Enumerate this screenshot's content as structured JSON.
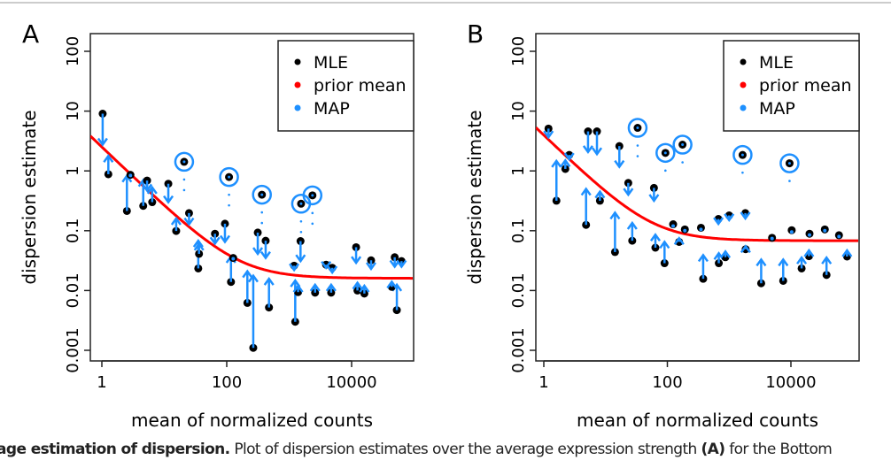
{
  "chart_data": [
    {
      "panel": "A",
      "type": "scatter",
      "xlabel": "mean of normalized counts",
      "ylabel": "dispersion estimate",
      "xscale": "log",
      "yscale": "log",
      "xlim": [
        0.67,
        100000
      ],
      "ylim": [
        0.0007,
        180
      ],
      "xticks": [
        "1",
        "100",
        "10000"
      ],
      "yticks": [
        "100",
        "10",
        "1",
        "0.1",
        "0.01",
        "0.001"
      ],
      "legend": {
        "position": "top-right",
        "entries": [
          {
            "label": "MLE",
            "color": "#000000"
          },
          {
            "label": "prior mean",
            "color": "#ff0000"
          },
          {
            "label": "MAP",
            "color": "#1e90ff"
          }
        ]
      },
      "prior_mean": {
        "a0": 0.016,
        "a1": 2.5
      },
      "points": [
        {
          "x": 1.03,
          "mle": 9.06,
          "map": 2.75
        },
        {
          "x": 1.27,
          "mle": 0.88,
          "map": 1.78
        },
        {
          "x": 2.52,
          "mle": 0.214,
          "map": 0.83
        },
        {
          "x": 2.87,
          "mle": 0.86,
          "map": 0.84
        },
        {
          "x": 4.6,
          "mle": 0.26,
          "map": 0.7
        },
        {
          "x": 5.3,
          "mle": 0.69,
          "map": 0.47
        },
        {
          "x": 6.4,
          "mle": 0.3,
          "map": 0.53
        },
        {
          "x": 11.6,
          "mle": 0.61,
          "map": 0.3
        },
        {
          "x": 20.8,
          "mle": 1.42,
          "map": 0.45,
          "outlier": true
        },
        {
          "x": 15.5,
          "mle": 0.099,
          "map": 0.16
        },
        {
          "x": 24.9,
          "mle": 0.197,
          "map": 0.128
        },
        {
          "x": 35,
          "mle": 0.0234,
          "map": 0.068
        },
        {
          "x": 36,
          "mle": 0.041,
          "map": 0.06
        },
        {
          "x": 64.8,
          "mle": 0.089,
          "map": 0.061
        },
        {
          "x": 93.6,
          "mle": 0.131,
          "map": 0.065
        },
        {
          "x": 108.8,
          "mle": 0.79,
          "map": 0.26,
          "outlier": true
        },
        {
          "x": 117,
          "mle": 0.0139,
          "map": 0.037
        },
        {
          "x": 127,
          "mle": 0.035,
          "map": 0.034
        },
        {
          "x": 214,
          "mle": 0.0062,
          "map": 0.021
        },
        {
          "x": 266,
          "mle": 0.0011,
          "map": 0.0177
        },
        {
          "x": 314,
          "mle": 0.093,
          "map": 0.041
        },
        {
          "x": 420,
          "mle": 0.068,
          "map": 0.035
        },
        {
          "x": 366,
          "mle": 0.4,
          "map": 0.13,
          "outlier": true
        },
        {
          "x": 475,
          "mle": 0.0052,
          "map": 0.0157
        },
        {
          "x": 1250,
          "mle": 0.003,
          "map": 0.0147
        },
        {
          "x": 1390,
          "mle": 0.0094,
          "map": 0.012
        },
        {
          "x": 1200,
          "mle": 0.026,
          "map": 0.022
        },
        {
          "x": 1520,
          "mle": 0.067,
          "map": 0.031
        },
        {
          "x": 1550,
          "mle": 0.283,
          "map": 0.092,
          "outlier": true
        },
        {
          "x": 2360,
          "mle": 0.39,
          "map": 0.13,
          "outlier": true
        },
        {
          "x": 2600,
          "mle": 0.0092,
          "map": 0.0125
        },
        {
          "x": 3900,
          "mle": 0.027,
          "map": 0.024
        },
        {
          "x": 4700,
          "mle": 0.0092,
          "map": 0.0125
        },
        {
          "x": 4900,
          "mle": 0.024,
          "map": 0.02
        },
        {
          "x": 11800,
          "mle": 0.053,
          "map": 0.029
        },
        {
          "x": 12400,
          "mle": 0.01,
          "map": 0.0135
        },
        {
          "x": 16000,
          "mle": 0.0089,
          "map": 0.012
        },
        {
          "x": 20500,
          "mle": 0.032,
          "map": 0.023
        },
        {
          "x": 49000,
          "mle": 0.036,
          "map": 0.025
        },
        {
          "x": 53000,
          "mle": 0.0047,
          "map": 0.0125
        },
        {
          "x": 44000,
          "mle": 0.0115,
          "map": 0.014
        },
        {
          "x": 63000,
          "mle": 0.031,
          "map": 0.025
        }
      ]
    },
    {
      "panel": "B",
      "type": "scatter",
      "xlabel": "mean of normalized counts",
      "ylabel": "dispersion estimate",
      "xscale": "log",
      "yscale": "log",
      "xlim": [
        0.77,
        100000
      ],
      "ylim": [
        0.0007,
        180
      ],
      "xticks": [
        "1",
        "100",
        "10000"
      ],
      "yticks": [
        "100",
        "10",
        "1",
        "0.1",
        "0.01",
        "0.001"
      ],
      "legend": {
        "position": "top-right",
        "entries": [
          {
            "label": "MLE",
            "color": "#000000"
          },
          {
            "label": "prior mean",
            "color": "#ff0000"
          },
          {
            "label": "MAP",
            "color": "#1e90ff"
          }
        ]
      },
      "prior_mean": {
        "a0": 0.068,
        "a1": 3.9
      },
      "points": [
        {
          "x": 1.19,
          "mle": 5.1,
          "map": 3.65
        },
        {
          "x": 1.6,
          "mle": 0.317,
          "map": 1.47
        },
        {
          "x": 2.23,
          "mle": 1.08,
          "map": 1.5
        },
        {
          "x": 2.58,
          "mle": 1.85,
          "map": 1.56
        },
        {
          "x": 4.83,
          "mle": 0.125,
          "map": 0.5
        },
        {
          "x": 5.2,
          "mle": 4.58,
          "map": 2.07
        },
        {
          "x": 7.25,
          "mle": 4.58,
          "map": 1.91
        },
        {
          "x": 8.1,
          "mle": 0.317,
          "map": 0.45
        },
        {
          "x": 14.2,
          "mle": 0.044,
          "map": 0.2
        },
        {
          "x": 16.7,
          "mle": 2.6,
          "map": 1.17
        },
        {
          "x": 33,
          "mle": 5.25,
          "map": 1.74,
          "outlier": true
        },
        {
          "x": 23.3,
          "mle": 0.63,
          "map": 0.4
        },
        {
          "x": 27,
          "mle": 0.068,
          "map": 0.135
        },
        {
          "x": 60.7,
          "mle": 0.52,
          "map": 0.317
        },
        {
          "x": 64,
          "mle": 0.052,
          "map": 0.086
        },
        {
          "x": 93,
          "mle": 2.0,
          "map": 0.93,
          "outlier": true
        },
        {
          "x": 176,
          "mle": 2.75,
          "map": 1.31,
          "outlier": true
        },
        {
          "x": 90,
          "mle": 0.0286,
          "map": 0.065
        },
        {
          "x": 124,
          "mle": 0.128,
          "map": 0.12
        },
        {
          "x": 155,
          "mle": 0.065,
          "map": 0.075
        },
        {
          "x": 192,
          "mle": 0.105,
          "map": 0.1
        },
        {
          "x": 350,
          "mle": 0.112,
          "map": 0.105
        },
        {
          "x": 380,
          "mle": 0.0157,
          "map": 0.039
        },
        {
          "x": 680,
          "mle": 0.0286,
          "map": 0.042
        },
        {
          "x": 670,
          "mle": 0.157,
          "map": 0.13
        },
        {
          "x": 870,
          "mle": 0.036,
          "map": 0.045
        },
        {
          "x": 1000,
          "mle": 0.18,
          "map": 0.15
        },
        {
          "x": 1830,
          "mle": 0.197,
          "map": 0.16
        },
        {
          "x": 1850,
          "mle": 0.049,
          "map": 0.055
        },
        {
          "x": 1650,
          "mle": 1.85,
          "map": 0.88,
          "outlier": true
        },
        {
          "x": 3300,
          "mle": 0.0132,
          "map": 0.033
        },
        {
          "x": 4950,
          "mle": 0.076,
          "map": 0.074
        },
        {
          "x": 7500,
          "mle": 0.0145,
          "map": 0.033
        },
        {
          "x": 9500,
          "mle": 1.34,
          "map": 0.64,
          "outlier": true
        },
        {
          "x": 10300,
          "mle": 0.102,
          "map": 0.095
        },
        {
          "x": 14900,
          "mle": 0.0234,
          "map": 0.0355
        },
        {
          "x": 19600,
          "mle": 0.0375,
          "map": 0.047
        },
        {
          "x": 20000,
          "mle": 0.089,
          "map": 0.085
        },
        {
          "x": 37700,
          "mle": 0.0182,
          "map": 0.0355
        },
        {
          "x": 35400,
          "mle": 0.105,
          "map": 0.1
        },
        {
          "x": 60000,
          "mle": 0.084,
          "map": 0.08
        },
        {
          "x": 81000,
          "mle": 0.037,
          "map": 0.047
        }
      ]
    }
  ],
  "caption": {
    "bold": "age estimation of dispersion.",
    "text": " Plot of dispersion estimates over the average expression strength ",
    "bold2": "(A)",
    "text2": " for the Bottom"
  }
}
